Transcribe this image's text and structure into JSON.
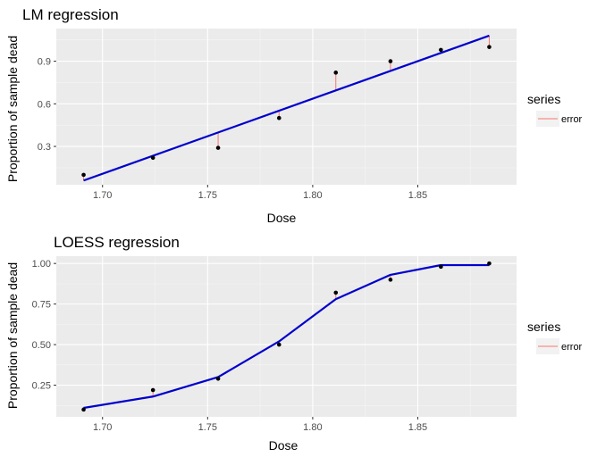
{
  "chart_data": [
    {
      "type": "scatter",
      "title": "LM regression",
      "xlabel": "Dose",
      "ylabel": "Proportion of sample dead",
      "xlim": [
        1.678,
        1.897
      ],
      "ylim": [
        0.03,
        1.13
      ],
      "x_ticks": [
        1.7,
        1.75,
        1.8,
        1.85
      ],
      "x_tick_labels": [
        "1.70",
        "1.75",
        "1.80",
        "1.85"
      ],
      "y_ticks": [
        0.3,
        0.6,
        0.9
      ],
      "y_tick_labels": [
        "0.3",
        "0.6",
        "0.9"
      ],
      "grid": true,
      "legend_position": "right",
      "series": [
        {
          "name": "error",
          "role": "residual-segments",
          "color": "#F8766D"
        }
      ],
      "points": {
        "x": [
          1.691,
          1.724,
          1.755,
          1.784,
          1.811,
          1.837,
          1.861,
          1.884
        ],
        "y": [
          0.1,
          0.22,
          0.29,
          0.5,
          0.82,
          0.9,
          0.98,
          1.0
        ]
      },
      "fit": {
        "x": [
          1.691,
          1.884
        ],
        "y": [
          0.06,
          1.08
        ],
        "color": "#0000CD"
      },
      "fitted": [
        0.06,
        0.23,
        0.4,
        0.55,
        0.7,
        0.84,
        0.96,
        1.08
      ]
    },
    {
      "type": "scatter",
      "title": "LOESS regression",
      "xlabel": "Dose",
      "ylabel": "Proportion of sample dead",
      "xlim": [
        1.678,
        1.897
      ],
      "ylim": [
        0.055,
        1.045
      ],
      "x_ticks": [
        1.7,
        1.75,
        1.8,
        1.85
      ],
      "x_tick_labels": [
        "1.70",
        "1.75",
        "1.80",
        "1.85"
      ],
      "y_ticks": [
        0.25,
        0.5,
        0.75,
        1.0
      ],
      "y_tick_labels": [
        "0.25",
        "0.50",
        "0.75",
        "1.00"
      ],
      "grid": true,
      "legend_position": "right",
      "series": [
        {
          "name": "error",
          "role": "residual-segments",
          "color": "#F8766D"
        }
      ],
      "points": {
        "x": [
          1.691,
          1.724,
          1.755,
          1.784,
          1.811,
          1.837,
          1.861,
          1.884
        ],
        "y": [
          0.1,
          0.22,
          0.29,
          0.5,
          0.82,
          0.9,
          0.98,
          1.0
        ]
      },
      "fit": {
        "x": [
          1.691,
          1.724,
          1.755,
          1.784,
          1.811,
          1.837,
          1.861,
          1.884
        ],
        "y": [
          0.11,
          0.18,
          0.3,
          0.52,
          0.78,
          0.93,
          0.99,
          0.99
        ],
        "color": "#0000CD"
      },
      "fitted": [
        0.11,
        0.18,
        0.3,
        0.52,
        0.78,
        0.93,
        0.99,
        0.99
      ]
    }
  ],
  "colors": {
    "panel_background": "#EBEBEB",
    "grid_major": "#FFFFFF",
    "point": "#000000",
    "fit_line": "#0000CD",
    "error_line": "#F8766D",
    "tick_text": "#4D4D4D",
    "legend_key_background": "#F2F2F2"
  },
  "legend": {
    "title": "series",
    "items": [
      "error"
    ]
  }
}
